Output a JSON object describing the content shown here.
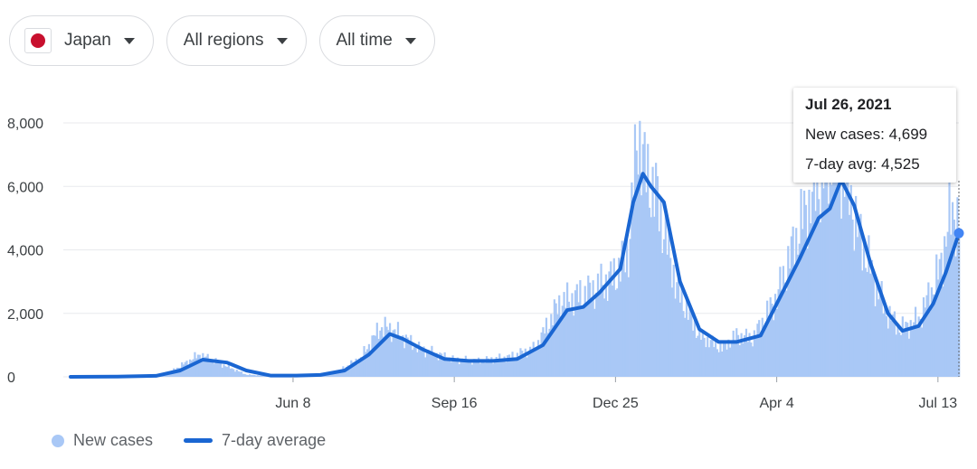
{
  "filters": {
    "country": "Japan",
    "region": "All regions",
    "range": "All time"
  },
  "colors": {
    "bars": "#a9c8f6",
    "line": "#1a66d2",
    "grid": "#e8eaed",
    "flag": "#c8102e",
    "tooltip_point": "#4285f4"
  },
  "icons": {
    "flag": "japan-flag-icon",
    "dropdown": "caret-down-icon"
  },
  "tooltip": {
    "date": "Jul 26, 2021",
    "new_cases": "New cases: 4,699",
    "avg": "7-day avg: 4,525"
  },
  "legend": {
    "bars": "New cases",
    "line": "7-day average"
  },
  "chart_data": {
    "type": "bar",
    "title": "",
    "xlabel": "",
    "ylabel": "",
    "ylim": [
      0,
      8000
    ],
    "grid": true,
    "yticks": [
      0,
      2000,
      4000,
      6000,
      8000
    ],
    "ytick_labels": [
      "0",
      "2,000",
      "4,000",
      "6,000",
      "8,000"
    ],
    "xrange": [
      "2020-01-22",
      "2021-07-26"
    ],
    "xticks": [
      {
        "date": "2020-06-08",
        "label": "Jun 8"
      },
      {
        "date": "2020-09-16",
        "label": "Sep 16"
      },
      {
        "date": "2020-12-25",
        "label": "Dec 25"
      },
      {
        "date": "2021-04-04",
        "label": "Apr 4"
      },
      {
        "date": "2021-07-13",
        "label": "Jul 13"
      }
    ],
    "legend_position": "bottom-left",
    "series": [
      {
        "name": "New cases",
        "type": "bar",
        "note_anchor_points": [
          [
            "2020-01-22",
            0
          ],
          [
            "2020-03-01",
            10
          ],
          [
            "2020-03-20",
            40
          ],
          [
            "2020-04-11",
            700
          ],
          [
            "2020-04-20",
            500
          ],
          [
            "2020-05-10",
            70
          ],
          [
            "2020-05-25",
            30
          ],
          [
            "2020-06-15",
            50
          ],
          [
            "2020-07-05",
            150
          ],
          [
            "2020-07-20",
            600
          ],
          [
            "2020-08-01",
            1550
          ],
          [
            "2020-08-08",
            1500
          ],
          [
            "2020-08-25",
            900
          ],
          [
            "2020-09-15",
            550
          ],
          [
            "2020-10-01",
            500
          ],
          [
            "2020-10-20",
            620
          ],
          [
            "2020-11-05",
            900
          ],
          [
            "2020-11-20",
            2300
          ],
          [
            "2020-12-10",
            2700
          ],
          [
            "2020-12-25",
            3200
          ],
          [
            "2021-01-02",
            4000
          ],
          [
            "2021-01-08",
            7800
          ],
          [
            "2021-01-12",
            6500
          ],
          [
            "2021-01-20",
            5600
          ],
          [
            "2021-02-01",
            2800
          ],
          [
            "2021-02-15",
            1300
          ],
          [
            "2021-03-01",
            900
          ],
          [
            "2021-03-10",
            1300
          ],
          [
            "2021-03-20",
            1200
          ],
          [
            "2021-04-04",
            2500
          ],
          [
            "2021-04-20",
            5000
          ],
          [
            "2021-05-08",
            7000
          ],
          [
            "2021-05-15",
            6600
          ],
          [
            "2021-05-25",
            4500
          ],
          [
            "2021-06-10",
            2100
          ],
          [
            "2021-06-20",
            1500
          ],
          [
            "2021-07-01",
            1800
          ],
          [
            "2021-07-13",
            3200
          ],
          [
            "2021-07-22",
            5300
          ],
          [
            "2021-07-26",
            4699
          ]
        ]
      },
      {
        "name": "7-day average",
        "type": "line",
        "points": [
          [
            "2020-01-22",
            0
          ],
          [
            "2020-02-20",
            5
          ],
          [
            "2020-03-15",
            30
          ],
          [
            "2020-03-30",
            200
          ],
          [
            "2020-04-13",
            540
          ],
          [
            "2020-04-28",
            450
          ],
          [
            "2020-05-10",
            200
          ],
          [
            "2020-05-25",
            40
          ],
          [
            "2020-06-10",
            40
          ],
          [
            "2020-06-25",
            60
          ],
          [
            "2020-07-10",
            200
          ],
          [
            "2020-07-25",
            700
          ],
          [
            "2020-08-07",
            1350
          ],
          [
            "2020-08-15",
            1200
          ],
          [
            "2020-08-28",
            850
          ],
          [
            "2020-09-10",
            560
          ],
          [
            "2020-09-25",
            500
          ],
          [
            "2020-10-10",
            500
          ],
          [
            "2020-10-25",
            560
          ],
          [
            "2020-11-10",
            1000
          ],
          [
            "2020-11-25",
            2100
          ],
          [
            "2020-12-05",
            2200
          ],
          [
            "2020-12-15",
            2650
          ],
          [
            "2020-12-28",
            3400
          ],
          [
            "2021-01-05",
            5500
          ],
          [
            "2021-01-11",
            6400
          ],
          [
            "2021-01-16",
            6000
          ],
          [
            "2021-01-24",
            5500
          ],
          [
            "2021-02-03",
            3000
          ],
          [
            "2021-02-15",
            1500
          ],
          [
            "2021-02-27",
            1100
          ],
          [
            "2021-03-10",
            1100
          ],
          [
            "2021-03-25",
            1300
          ],
          [
            "2021-04-04",
            2300
          ],
          [
            "2021-04-18",
            3700
          ],
          [
            "2021-04-30",
            5000
          ],
          [
            "2021-05-07",
            5300
          ],
          [
            "2021-05-14",
            6200
          ],
          [
            "2021-05-22",
            5400
          ],
          [
            "2021-06-01",
            3600
          ],
          [
            "2021-06-12",
            2000
          ],
          [
            "2021-06-21",
            1450
          ],
          [
            "2021-07-01",
            1600
          ],
          [
            "2021-07-10",
            2300
          ],
          [
            "2021-07-18",
            3300
          ],
          [
            "2021-07-26",
            4525
          ]
        ]
      }
    ]
  }
}
